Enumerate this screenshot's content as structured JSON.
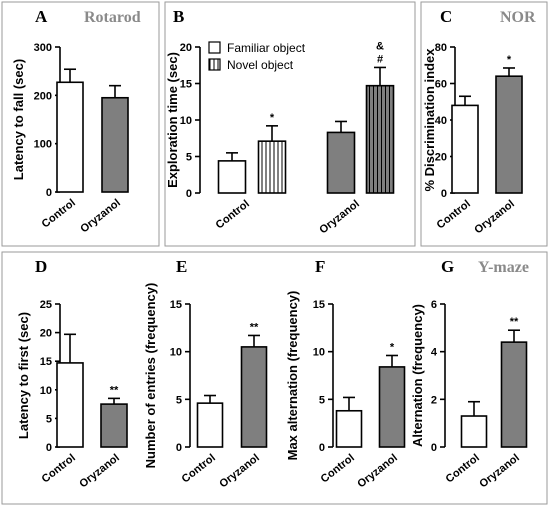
{
  "colors": {
    "control_fill": "#ffffff",
    "oryzanol_fill": "#7f7f7f",
    "stroke": "#000000",
    "panel_title": "#8a8a8a"
  },
  "section_titles": {
    "top_right": "NOR",
    "bottom_right": "Y-maze"
  },
  "chart_data": [
    {
      "id": "A",
      "letter": "A",
      "title": "Rotarod",
      "type": "bar",
      "categories": [
        "Control",
        "Oryzanol"
      ],
      "values": [
        227,
        195
      ],
      "errors": [
        27,
        25
      ],
      "significance": [
        "",
        ""
      ],
      "ylabel": "Latency to fall (sec)",
      "ylim": [
        0,
        300
      ],
      "yticks": [
        0,
        100,
        200,
        300
      ]
    },
    {
      "id": "B",
      "letter": "B",
      "title": "",
      "type": "bar",
      "categories": [
        "Control",
        "Oryzanol"
      ],
      "legend": [
        "Familiar object",
        "Novel object"
      ],
      "series": [
        {
          "name": "Familiar object",
          "values": [
            4.4,
            8.3
          ],
          "errors": [
            1.1,
            1.5
          ],
          "significance": [
            "",
            ""
          ]
        },
        {
          "name": "Novel object",
          "values": [
            7.1,
            14.7
          ],
          "errors": [
            2.1,
            2.5
          ],
          "significance": [
            "*",
            "#"
          ]
        }
      ],
      "extra_marks": [
        {
          "category": "Oryzanol",
          "series": "Novel object",
          "text": "&"
        }
      ],
      "ylabel": "Exploration time (sec)",
      "ylim": [
        0,
        20
      ],
      "yticks": [
        0,
        5,
        10,
        15,
        20
      ]
    },
    {
      "id": "C",
      "letter": "C",
      "title": "",
      "type": "bar",
      "categories": [
        "Control",
        "Oryzanol"
      ],
      "values": [
        48,
        64
      ],
      "errors": [
        5,
        4.5
      ],
      "significance": [
        "",
        "*"
      ],
      "ylabel": "% Discrimination index",
      "ylim": [
        0,
        80
      ],
      "yticks": [
        0,
        20,
        40,
        60,
        80
      ]
    },
    {
      "id": "D",
      "letter": "D",
      "title": "",
      "type": "bar",
      "categories": [
        "Control",
        "Oryzanol"
      ],
      "values": [
        14.7,
        7.5
      ],
      "errors": [
        5.0,
        1.0
      ],
      "significance": [
        "",
        "**"
      ],
      "ylabel": "Latency to first (sec)",
      "ylim": [
        0,
        25
      ],
      "yticks": [
        0,
        5,
        10,
        15,
        20,
        25
      ]
    },
    {
      "id": "E",
      "letter": "E",
      "title": "",
      "type": "bar",
      "categories": [
        "Control",
        "Oryzanol"
      ],
      "values": [
        4.6,
        10.5
      ],
      "errors": [
        0.8,
        1.2
      ],
      "significance": [
        "",
        "**"
      ],
      "ylabel": "Number of entries (frequency)",
      "ylim": [
        0,
        15
      ],
      "yticks": [
        0,
        5,
        10,
        15
      ]
    },
    {
      "id": "F",
      "letter": "F",
      "title": "",
      "type": "bar",
      "categories": [
        "Control",
        "Oryzanol"
      ],
      "values": [
        3.8,
        8.4
      ],
      "errors": [
        1.4,
        1.2
      ],
      "significance": [
        "",
        "*"
      ],
      "ylabel": "Max alternation (frequency)",
      "ylim": [
        0,
        15
      ],
      "yticks": [
        0,
        5,
        10,
        15
      ]
    },
    {
      "id": "G",
      "letter": "G",
      "title": "",
      "type": "bar",
      "categories": [
        "Control",
        "Oryzanol"
      ],
      "values": [
        1.3,
        4.4
      ],
      "errors": [
        0.6,
        0.5
      ],
      "significance": [
        "",
        "**"
      ],
      "ylabel": "Alternation (frequency)",
      "ylim": [
        0,
        6
      ],
      "yticks": [
        0,
        2,
        4,
        6
      ]
    }
  ]
}
